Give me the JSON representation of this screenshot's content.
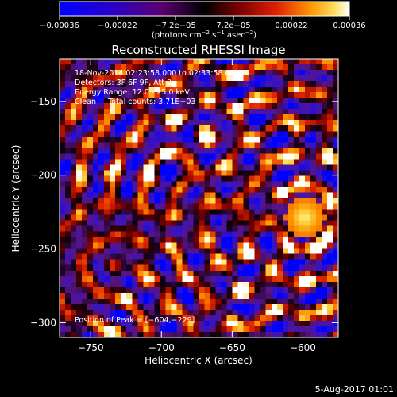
{
  "chart_data": {
    "type": "heatmap",
    "title": "Reconstructed RHESSI Image",
    "xlabel": "Heliocentric X (arcsec)",
    "ylabel": "Heliocentric Y (arcsec)",
    "xlim": [
      -772,
      -575
    ],
    "ylim": [
      -310,
      -121
    ],
    "x_ticks": [
      -750,
      -700,
      -650,
      -600
    ],
    "y_ticks": [
      -150,
      -200,
      -250,
      -300
    ],
    "x_tick_labels": [
      "−750",
      "−700",
      "−650",
      "−600"
    ],
    "y_tick_labels": [
      "−150",
      "−200",
      "−250",
      "−300"
    ],
    "colorbar": {
      "range": [
        -0.00036,
        0.00036
      ],
      "tick_labels": [
        "−0.00036",
        "−0.00022",
        "−7.2e−05",
        "7.2e−05",
        "0.00022",
        "0.00036"
      ],
      "units_prefix": "(photons cm",
      "units_sup1": "−2",
      "units_mid": " s",
      "units_sup2": "−1",
      "units_mid2": " asec",
      "units_sup3": "−2",
      "units_suffix": ")"
    },
    "annotations": {
      "line1": "18-Nov-2014 02:23:58.000 to 02:33:58.000",
      "line2": "Detectors: 3F 6F 9F, Att 0",
      "line3": "Energy Range: 12.0 - 25.0 keV",
      "line4": "Clean     Total counts: 3.71E+03",
      "peak": "Position of Peak = [−604,−229]"
    },
    "grid_size": 50,
    "grid": false
  },
  "footer": {
    "date": "5-Aug-2017 01:01"
  },
  "colors": {
    "background": "#000000",
    "foreground": "#ffffff"
  }
}
